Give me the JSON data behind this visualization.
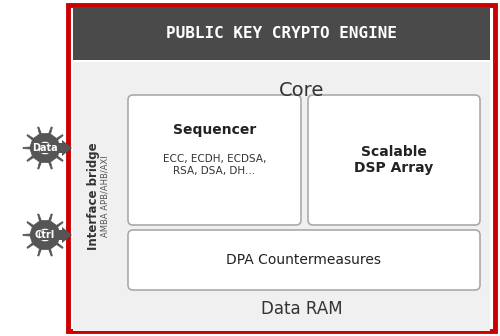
{
  "bg_color": "#ffffff",
  "outer_border_color": "#cc0000",
  "outer_border_lw": 3.5,
  "header_color": "#4a4a4a",
  "core_bg": "#f0f0f0",
  "inner_box_bg": "#ffffff",
  "inner_box_border": "#aaaaaa",
  "gear_color": "#555555",
  "gear_label_color": "#555555",
  "header_text": "PUBLIC KEY CRYPTO ENGINE",
  "core_label": "Core",
  "sequencer_title": "Sequencer",
  "sequencer_sub": "ECC, ECDH, ECDSA,\nRSA, DSA, DH...",
  "dsp_title": "Scalable\nDSP Array",
  "dpa_label": "DPA Countermeasures",
  "ram_label": "Data RAM",
  "bridge_label": "Interface bridge",
  "bridge_sub": "AMBA APB/AHB/AXI",
  "data_label": "Data",
  "ctrl_label": "Ctrl"
}
